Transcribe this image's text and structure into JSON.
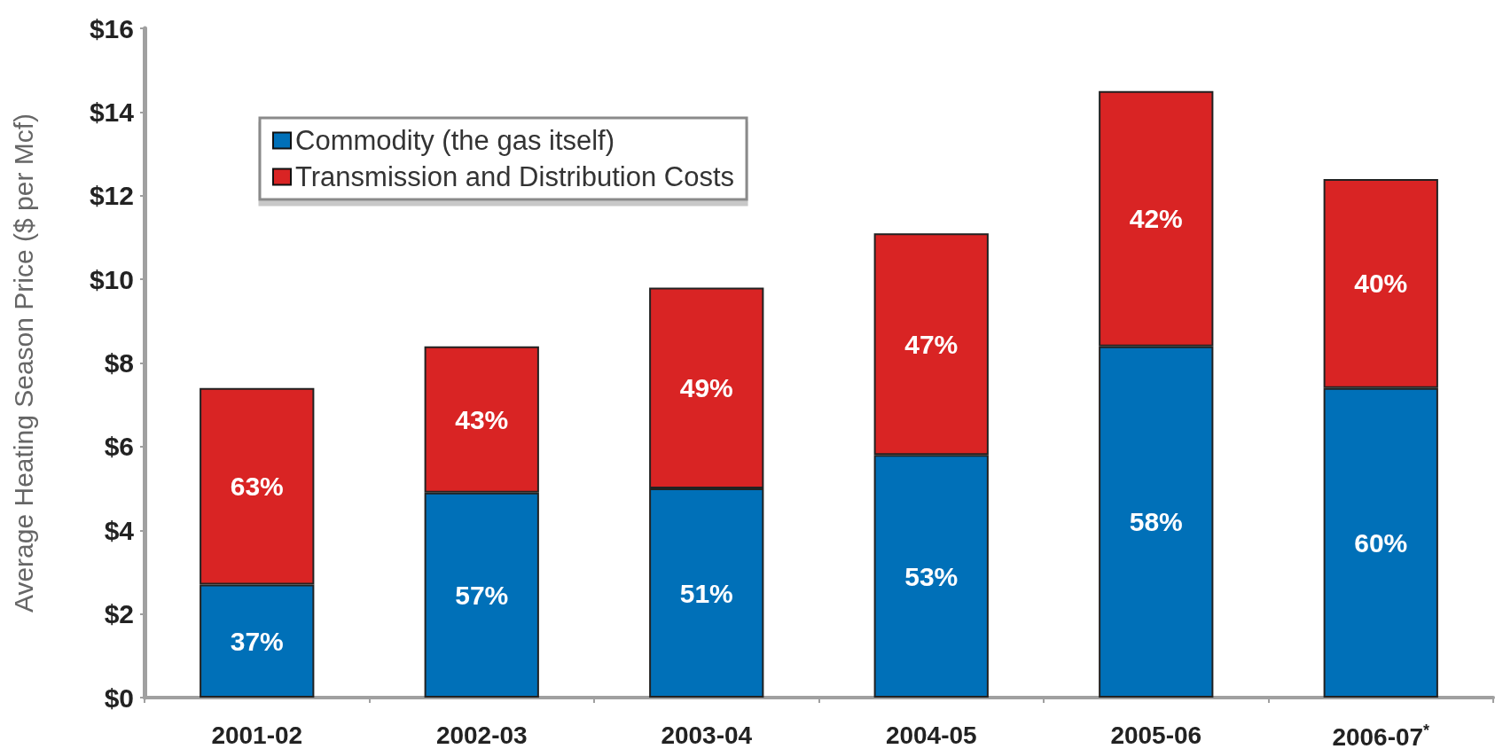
{
  "chart_data": {
    "type": "bar",
    "stacked": true,
    "ylabel": "Average Heating Season Price ($ per Mcf)",
    "categories": [
      "2001-02",
      "2002-03",
      "2003-04",
      "2004-05",
      "2005-06",
      "2006-07$^{*}$"
    ],
    "series": [
      {
        "name": "Commodity (the gas itself)",
        "color": "#0070b8",
        "values": [
          2.7,
          4.9,
          5.0,
          5.8,
          8.4,
          7.4
        ]
      },
      {
        "name": "Transmission and Distribution Costs",
        "color": "#d92424",
        "values": [
          4.7,
          3.5,
          4.8,
          5.3,
          6.1,
          5.0
        ]
      }
    ],
    "annotations": [
      "37%",
      "63%",
      "57%",
      "43%",
      "51%",
      "49%",
      "53%",
      "47%",
      "58%",
      "42%",
      "60%",
      "40%"
    ],
    "ylim": [
      0,
      16
    ],
    "yticks": [
      {
        "value": 0,
        "label": "$0"
      },
      {
        "value": 2,
        "label": "$2"
      },
      {
        "value": 4,
        "label": "$4"
      },
      {
        "value": 6,
        "label": "$6"
      },
      {
        "value": 8,
        "label": "$8"
      },
      {
        "value": 10,
        "label": "$10"
      },
      {
        "value": 12,
        "label": "$12"
      },
      {
        "value": 14,
        "label": "$14"
      },
      {
        "value": 16,
        "label": "$16"
      }
    ],
    "grid": false,
    "legend": "top left"
  }
}
